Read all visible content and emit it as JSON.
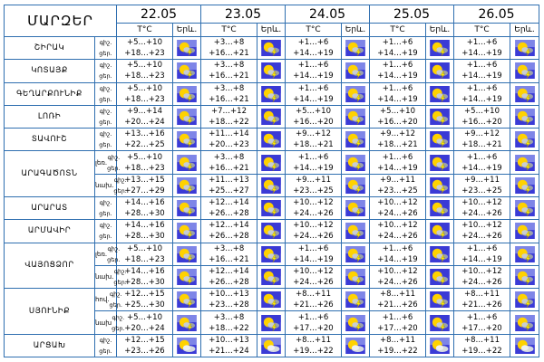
{
  "title": "ՄԱՐԶԵՐ",
  "dates": [
    "22.05",
    "23.05",
    "24.05",
    "25.05",
    "26.05"
  ],
  "temp_header": "T°C",
  "phen_header": "Երև.",
  "day_label": "ցեր.",
  "night_label": "գիշ.",
  "rows": [
    {
      "region": "ՇԻՐԱԿ",
      "night": [
        "+5…+10",
        "+3…+8",
        "+1…+6",
        "+1…+6",
        "+1…+6"
      ],
      "day": [
        "+18…+23",
        "+16…+21",
        "+14…+19",
        "+14…+19",
        "+14…+19"
      ]
    },
    {
      "region": "ԿՈՏԱՅՔ",
      "night": [
        "+5…+10",
        "+3…+8",
        "+1…+6",
        "+1…+6",
        "+1…+6"
      ],
      "day": [
        "+18…+23",
        "+16…+21",
        "+14…+19",
        "+14…+19",
        "+14…+19"
      ]
    },
    {
      "region": "ԳԵՂԱՐՔՈՒՆԻՔ",
      "night": [
        "+5…+10",
        "+3…+8",
        "+1…+6",
        "+1…+6",
        "+1…+6"
      ],
      "day": [
        "+18…+23",
        "+16…+21",
        "+14…+19",
        "+14…+19",
        "+14…+19"
      ]
    },
    {
      "region": "ԼՈՌԻ",
      "night": [
        "+9…+14",
        "+7…+12",
        "+5…+10",
        "+5…+10",
        "+5…+10"
      ],
      "day": [
        "+20…+24",
        "+18…+22",
        "+16…+20",
        "+16…+20",
        "+16…+20"
      ]
    },
    {
      "region": "ՏԱՎՈՒՇ",
      "night": [
        "+13…+16",
        "+11…+14",
        "+9…+12",
        "+9…+12",
        "+9…+12"
      ],
      "day": [
        "+22…+25",
        "+20…+23",
        "+18…+21",
        "+18…+21",
        "+18…+21"
      ]
    },
    {
      "region": "ԱՐԱԳԱԾՈՏՆ",
      "sub": "լեռ.",
      "night": [
        "+5…+10",
        "+3…+8",
        "+1…+6",
        "+1…+6",
        "+1…+6"
      ],
      "day": [
        "+18…+23",
        "+16…+21",
        "+14…+19",
        "+14…+19",
        "+14…+19"
      ]
    },
    {
      "sub": "նախ.",
      "night": [
        "+13…+15",
        "+11…+13",
        "+9…+11",
        "+9…+11",
        "+9…+11"
      ],
      "day": [
        "+27…+29",
        "+25…+27",
        "+23…+25",
        "+23…+25",
        "+23…+25"
      ]
    },
    {
      "region": "ԱՐԱՐԱՏ",
      "night": [
        "+14…+16",
        "+12…+14",
        "+10…+12",
        "+10…+12",
        "+10…+12"
      ],
      "day": [
        "+28…+30",
        "+26…+28",
        "+24…+26",
        "+24…+26",
        "+24…+26"
      ]
    },
    {
      "region": "ԱՐՄԱՎԻՐ",
      "night": [
        "+14…+16",
        "+12…+14",
        "+10…+12",
        "+10…+12",
        "+10…+12"
      ],
      "day": [
        "+28…+30",
        "+26…+28",
        "+24…+26",
        "+24…+26",
        "+24…+26"
      ]
    },
    {
      "region": "ՎԱՅՈՑՁՈՐ",
      "sub": "լեռ.",
      "night": [
        "+5…+10",
        "+3…+8",
        "+1…+6",
        "+1…+6",
        "+1…+6"
      ],
      "day": [
        "+18…+23",
        "+16…+21",
        "+14…+19",
        "+14…+19",
        "+14…+19"
      ]
    },
    {
      "sub": "նախ.",
      "night": [
        "+14…+16",
        "+12…+14",
        "+10…+12",
        "+10…+12",
        "+10…+12"
      ],
      "day": [
        "+28…+30",
        "+26…+28",
        "+24…+26",
        "+24…+26",
        "+24…+26"
      ]
    },
    {
      "region": "ՍՅՈՒՆԻՔ",
      "sub": "հով.",
      "night": [
        "+12…+15",
        "+10…+13",
        "+8…+11",
        "+8…+11",
        "+8…+11"
      ],
      "day": [
        "+25…+30",
        "+23…+28",
        "+21…+26",
        "+21…+26",
        "+21…+26"
      ]
    },
    {
      "sub": "նախ",
      "night": [
        "+5…+10",
        "+3…+8",
        "+1…+6",
        "+1…+6",
        "+1…+6"
      ],
      "day": [
        "+20…+24",
        "+18…+22",
        "+17…+20",
        "+17…+20",
        "+17…+20"
      ]
    },
    {
      "region": "ԱՐՑԱԽ",
      "night": [
        "+12…+15",
        "+10…+13",
        "+8…+11",
        "+8…+11",
        "+8…+11"
      ],
      "day": [
        "+23…+26",
        "+21…+24",
        "+19…+22",
        "+19…+22",
        "+19…+22"
      ]
    }
  ],
  "icons": {
    "storm": {
      "name": "sun-cloud-thunder-icon",
      "sky": "#3b3bd6",
      "sky_light": "#b7c3f5",
      "sun": "#ffd200",
      "cloud": "#9aa1ad",
      "bolt": "#ffea00"
    },
    "cloudy": {
      "name": "sun-cloud-icon"
    }
  }
}
